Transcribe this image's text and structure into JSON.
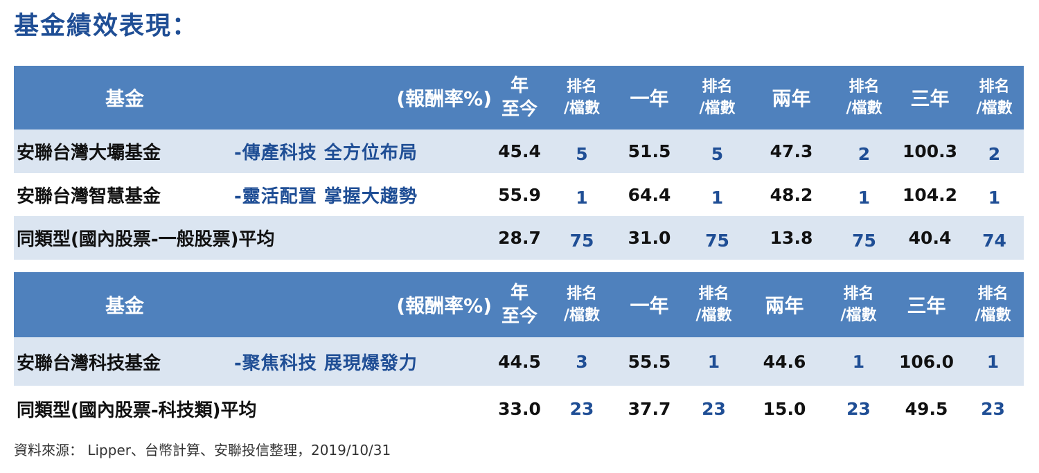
{
  "title": "基金績效表現：",
  "header": {
    "fund": "基金",
    "return_label": "(報酬率%)",
    "ytd_line1": "年",
    "ytd_line2": "至今",
    "rank_line1": "排名",
    "rank_line2": "/檔數",
    "one_year": "一年",
    "two_year": "兩年",
    "three_year": "三年"
  },
  "table1": {
    "rows": [
      {
        "name": "安聯台灣大壩基金",
        "tag": "-傳產科技  全方位布局",
        "ytd": "45.4",
        "ytd_rank": "5",
        "y1": "51.5",
        "y1_rank": "5",
        "y2": "47.3",
        "y2_rank": "2",
        "y3": "100.3",
        "y3_rank": "2"
      },
      {
        "name": "安聯台灣智慧基金",
        "tag": "-靈活配置  掌握大趨勢",
        "ytd": "55.9",
        "ytd_rank": "1",
        "y1": "64.4",
        "y1_rank": "1",
        "y2": "48.2",
        "y2_rank": "1",
        "y3": "104.2",
        "y3_rank": "1"
      },
      {
        "name": "同類型(國內股票-一般股票)平均",
        "tag": "",
        "ytd": "28.7",
        "ytd_rank": "75",
        "y1": "31.0",
        "y1_rank": "75",
        "y2": "13.8",
        "y2_rank": "75",
        "y3": "40.4",
        "y3_rank": "74"
      }
    ]
  },
  "table2": {
    "rows": [
      {
        "name": "安聯台灣科技基金",
        "tag": "-聚焦科技  展現爆發力",
        "ytd": "44.5",
        "ytd_rank": "3",
        "y1": "55.5",
        "y1_rank": "1",
        "y2": "44.6",
        "y2_rank": "1",
        "y3": "106.0",
        "y3_rank": "1"
      },
      {
        "name": "同類型(國內股票-科技類)平均",
        "tag": "",
        "ytd": "33.0",
        "ytd_rank": "23",
        "y1": "37.7",
        "y1_rank": "23",
        "y2": "15.0",
        "y2_rank": "23",
        "y3": "49.5",
        "y3_rank": "23"
      }
    ]
  },
  "source": "資料來源： Lipper、台幣計算、安聯投信整理，2019/10/31",
  "colors": {
    "header_bg": "#4f81bd",
    "band_bg": "#dbe5f1",
    "accent": "#1f4e95"
  }
}
